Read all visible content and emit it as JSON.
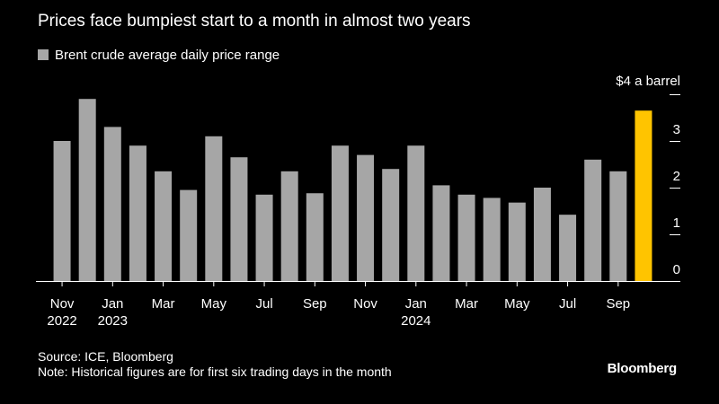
{
  "title": "Prices face bumpiest start to a month in almost two years",
  "legend_label": "Brent crude average daily price range",
  "source": "Source: ICE, Bloomberg",
  "note": "Note: Historical figures are for first six trading days in the month",
  "brand": "Bloomberg",
  "colors": {
    "background": "#000000",
    "bar": "#a6a6a6",
    "highlight": "#ffc400",
    "text": "#ffffff",
    "axis": "#ffffff"
  },
  "chart_data": {
    "type": "bar",
    "title": "Prices face bumpiest start to a month in almost two years",
    "ylabel": "$ a barrel",
    "ylim": [
      0,
      4
    ],
    "yticks": [
      {
        "value": 0,
        "label": "0"
      },
      {
        "value": 1,
        "label": "1"
      },
      {
        "value": 2,
        "label": "2"
      },
      {
        "value": 3,
        "label": "3"
      },
      {
        "value": 4,
        "label": "$4 a barrel"
      }
    ],
    "categories": [
      "2022-11",
      "2022-12",
      "2023-01",
      "2023-02",
      "2023-03",
      "2023-04",
      "2023-05",
      "2023-06",
      "2023-07",
      "2023-08",
      "2023-09",
      "2023-10",
      "2023-11",
      "2023-12",
      "2024-01",
      "2024-02",
      "2024-03",
      "2024-04",
      "2024-05",
      "2024-06",
      "2024-07",
      "2024-08",
      "2024-09",
      "2024-10"
    ],
    "x_tick_labels": [
      {
        "index": 0,
        "month": "Nov",
        "year": "2022"
      },
      {
        "index": 2,
        "month": "Jan",
        "year": "2023"
      },
      {
        "index": 4,
        "month": "Mar",
        "year": ""
      },
      {
        "index": 6,
        "month": "May",
        "year": ""
      },
      {
        "index": 8,
        "month": "Jul",
        "year": ""
      },
      {
        "index": 10,
        "month": "Sep",
        "year": ""
      },
      {
        "index": 12,
        "month": "Nov",
        "year": ""
      },
      {
        "index": 14,
        "month": "Jan",
        "year": "2024"
      },
      {
        "index": 16,
        "month": "Mar",
        "year": ""
      },
      {
        "index": 18,
        "month": "May",
        "year": ""
      },
      {
        "index": 20,
        "month": "Jul",
        "year": ""
      },
      {
        "index": 22,
        "month": "Sep",
        "year": ""
      }
    ],
    "series": [
      {
        "name": "Brent crude average daily price range",
        "values": [
          3.0,
          3.9,
          3.3,
          2.9,
          2.35,
          1.95,
          3.1,
          2.65,
          1.85,
          2.35,
          1.88,
          2.9,
          2.7,
          2.4,
          2.9,
          2.05,
          1.85,
          1.78,
          1.68,
          2.0,
          1.42,
          2.6,
          2.35,
          3.65
        ]
      }
    ],
    "highlight_index": 23,
    "grid": false,
    "legend_position": "top-left"
  }
}
